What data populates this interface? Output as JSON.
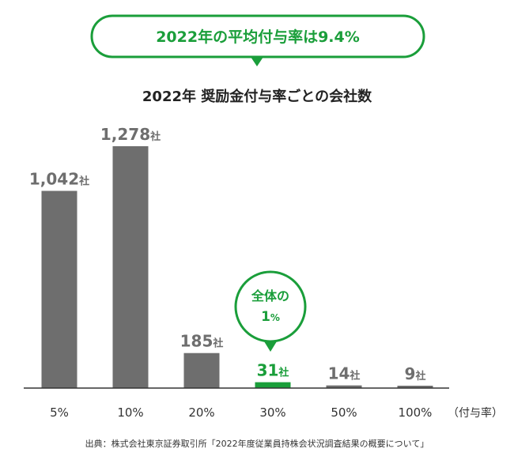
{
  "banner": {
    "text": "2022年の平均付与率は9.4%"
  },
  "chart_data": {
    "type": "bar",
    "title": "2022年 奨励金付与率ごとの会社数",
    "categories": [
      "5%",
      "10%",
      "20%",
      "30%",
      "50%",
      "100%"
    ],
    "values": [
      1042,
      1278,
      185,
      31,
      14,
      9
    ],
    "value_labels": [
      "1,042",
      "1,278",
      "185",
      "31",
      "14",
      "9"
    ],
    "value_unit": "社",
    "xlabel": "（付与率）",
    "ylim": [
      0,
      1300
    ],
    "highlight_index": 3,
    "grid": false
  },
  "callout": {
    "line1": "全体の",
    "number": "1",
    "unit": "%"
  },
  "source": "出典：株式会社東京証券取引所「2022年度従業員持株会状況調査結果の概要について」",
  "colors": {
    "bar": "#6e6e6e",
    "highlight": "#1a9e3a",
    "axis": "#333333"
  }
}
